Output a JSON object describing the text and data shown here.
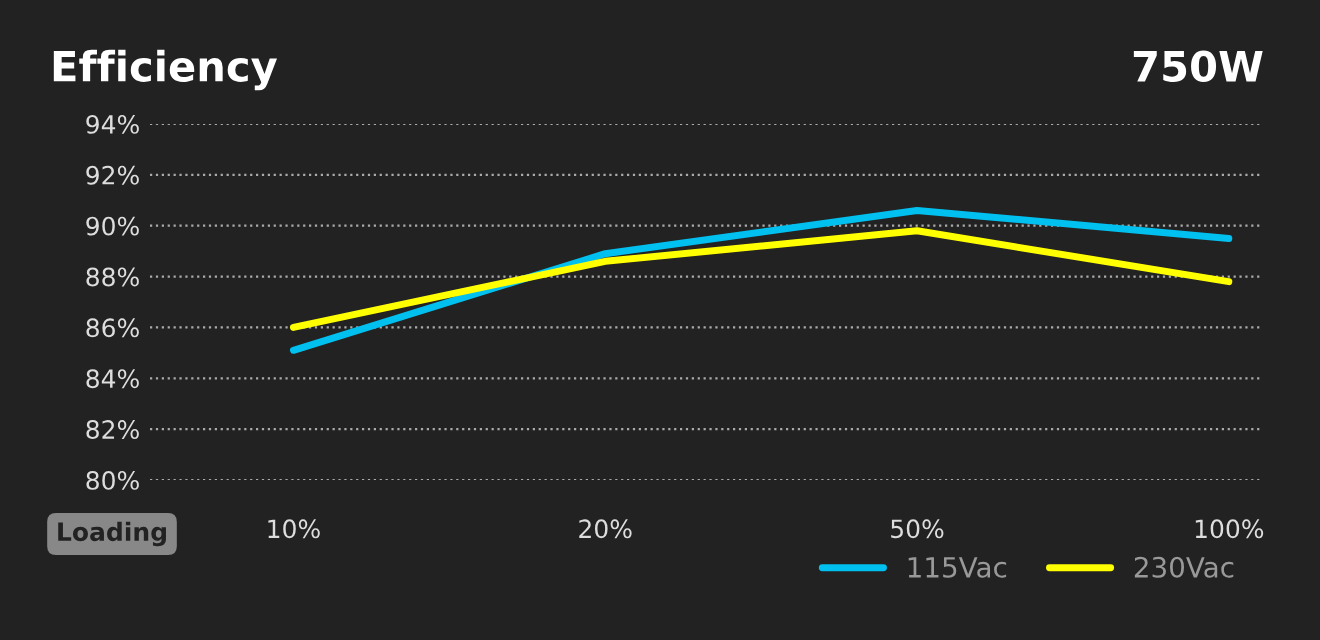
{
  "chart_data": {
    "type": "line",
    "title": "Efficiency",
    "subtitle": "750W",
    "xlabel": "Loading",
    "categories": [
      "10%",
      "20%",
      "50%",
      "100%"
    ],
    "series": [
      {
        "name": "115Vac",
        "color": "#00c0f0",
        "values": [
          85.1,
          88.9,
          90.6,
          89.5
        ]
      },
      {
        "name": "230Vac",
        "color": "#ffff00",
        "values": [
          86.0,
          88.6,
          89.8,
          87.8
        ]
      }
    ],
    "ylim": [
      80,
      94
    ],
    "yticks": [
      {
        "value": 80,
        "label": "80%"
      },
      {
        "value": 82,
        "label": "82%"
      },
      {
        "value": 84,
        "label": "84%"
      },
      {
        "value": 86,
        "label": "86%"
      },
      {
        "value": 88,
        "label": "88%"
      },
      {
        "value": 90,
        "label": "90%"
      },
      {
        "value": 92,
        "label": "92%"
      },
      {
        "value": 94,
        "label": "94%"
      }
    ],
    "grid": "y",
    "legend": "bottom right",
    "marker": "none",
    "line_style": "solid"
  }
}
